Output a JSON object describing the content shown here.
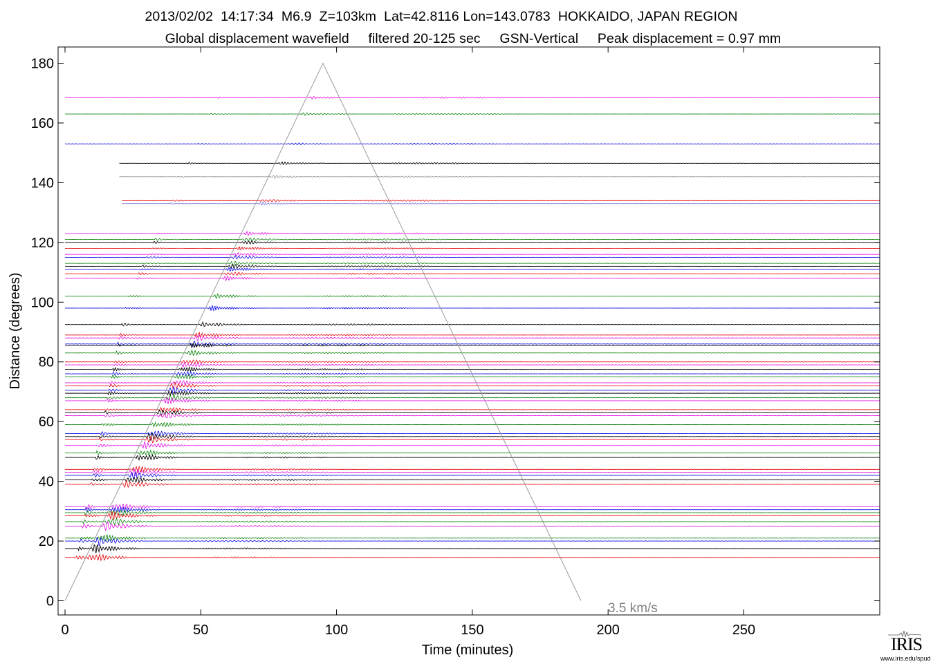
{
  "header": {
    "line1": "2013/02/02  14:17:34  M6.9  Z=103km  Lat=42.8116 Lon=143.0783  HOKKAIDO, JAPAN REGION",
    "line2": "Global displacement wavefield     filtered 20-125 sec     GSN-Vertical     Peak displacement = 0.97 mm"
  },
  "chart_data": {
    "type": "line",
    "title": "2013/02/02  14:17:34  M6.9  Z=103km  Lat=42.8116 Lon=143.0783  HOKKAIDO, JAPAN REGION",
    "subtitle": "Global displacement wavefield     filtered 20-125 sec     GSN-Vertical     Peak displacement = 0.97 mm",
    "xlabel": "Time (minutes)",
    "ylabel": "Distance (degrees)",
    "xlim": [
      0,
      300
    ],
    "ylim": [
      0,
      185
    ],
    "xticks": [
      0,
      50,
      100,
      150,
      200,
      250
    ],
    "yticks": [
      0,
      20,
      40,
      60,
      80,
      100,
      120,
      140,
      160,
      180
    ],
    "grid": false,
    "colors": {
      "black": "#000000",
      "red": "#e8141b",
      "green": "#1a8a1a",
      "blue": "#1515e6",
      "magenta": "#e61ee6",
      "gray": "#9a9a9a",
      "lightblue": "#8a8ae6"
    },
    "reference_line": {
      "label": "3.5 km/s",
      "points": [
        [
          0,
          0
        ],
        [
          95,
          180
        ],
        [
          190,
          0
        ]
      ],
      "color": "#9a9a9a"
    },
    "traces": [
      {
        "distance": 168.5,
        "color": "magenta",
        "start": 0
      },
      {
        "distance": 163,
        "color": "green",
        "start": 0
      },
      {
        "distance": 153,
        "color": "blue",
        "start": 0
      },
      {
        "distance": 146.5,
        "color": "black",
        "start": 20
      },
      {
        "distance": 142,
        "color": "gray",
        "start": 20
      },
      {
        "distance": 134,
        "color": "red",
        "start": 21
      },
      {
        "distance": 133,
        "color": "lightblue",
        "start": 21
      },
      {
        "distance": 123,
        "color": "magenta",
        "start": 0
      },
      {
        "distance": 121,
        "color": "green",
        "start": 0
      },
      {
        "distance": 120,
        "color": "black",
        "start": 0
      },
      {
        "distance": 118,
        "color": "red",
        "start": 0
      },
      {
        "distance": 116,
        "color": "magenta",
        "start": 0
      },
      {
        "distance": 115,
        "color": "blue",
        "start": 0
      },
      {
        "distance": 113,
        "color": "green",
        "start": 0
      },
      {
        "distance": 112,
        "color": "black",
        "start": 0
      },
      {
        "distance": 111,
        "color": "blue",
        "start": 0
      },
      {
        "distance": 109.5,
        "color": "red",
        "start": 0
      },
      {
        "distance": 108,
        "color": "magenta",
        "start": 0
      },
      {
        "distance": 102,
        "color": "green",
        "start": 0
      },
      {
        "distance": 98,
        "color": "blue",
        "start": 0
      },
      {
        "distance": 92.5,
        "color": "black",
        "start": 0
      },
      {
        "distance": 89,
        "color": "red",
        "start": 0
      },
      {
        "distance": 88,
        "color": "magenta",
        "start": 0
      },
      {
        "distance": 86,
        "color": "blue",
        "start": 0
      },
      {
        "distance": 85.5,
        "color": "black",
        "start": 0
      },
      {
        "distance": 83,
        "color": "green",
        "start": 0
      },
      {
        "distance": 80,
        "color": "red",
        "start": 0
      },
      {
        "distance": 79,
        "color": "magenta",
        "start": 0
      },
      {
        "distance": 77.5,
        "color": "black",
        "start": 0
      },
      {
        "distance": 76,
        "color": "blue",
        "start": 0
      },
      {
        "distance": 75,
        "color": "green",
        "start": 0
      },
      {
        "distance": 73,
        "color": "magenta",
        "start": 0
      },
      {
        "distance": 72,
        "color": "red",
        "start": 0
      },
      {
        "distance": 70.5,
        "color": "blue",
        "start": 0
      },
      {
        "distance": 69.5,
        "color": "black",
        "start": 0
      },
      {
        "distance": 68,
        "color": "green",
        "start": 0
      },
      {
        "distance": 67,
        "color": "magenta",
        "start": 0
      },
      {
        "distance": 64,
        "color": "red",
        "start": 0
      },
      {
        "distance": 63,
        "color": "black",
        "start": 0
      },
      {
        "distance": 62,
        "color": "magenta",
        "start": 0
      },
      {
        "distance": 59,
        "color": "green",
        "start": 0
      },
      {
        "distance": 56,
        "color": "blue",
        "start": 0
      },
      {
        "distance": 55,
        "color": "black",
        "start": 0
      },
      {
        "distance": 54,
        "color": "red",
        "start": 0
      },
      {
        "distance": 52,
        "color": "magenta",
        "start": 0
      },
      {
        "distance": 49.5,
        "color": "green",
        "start": 0
      },
      {
        "distance": 48,
        "color": "black",
        "start": 0
      },
      {
        "distance": 44,
        "color": "red",
        "start": 0
      },
      {
        "distance": 43,
        "color": "magenta",
        "start": 0
      },
      {
        "distance": 42,
        "color": "blue",
        "start": 0
      },
      {
        "distance": 40.5,
        "color": "black",
        "start": 0
      },
      {
        "distance": 39,
        "color": "red",
        "start": 0
      },
      {
        "distance": 31.5,
        "color": "magenta",
        "start": 0
      },
      {
        "distance": 30.5,
        "color": "blue",
        "start": 0
      },
      {
        "distance": 29.5,
        "color": "green",
        "start": 0
      },
      {
        "distance": 28.5,
        "color": "red",
        "start": 0
      },
      {
        "distance": 26.5,
        "color": "green",
        "start": 0
      },
      {
        "distance": 25,
        "color": "magenta",
        "start": 0
      },
      {
        "distance": 21,
        "color": "green",
        "start": 0
      },
      {
        "distance": 20,
        "color": "blue",
        "start": 0
      },
      {
        "distance": 17.5,
        "color": "black",
        "start": 0
      },
      {
        "distance": 14.5,
        "color": "red",
        "start": 0
      }
    ]
  },
  "logo": {
    "name": "IRIS",
    "url": "www.iris.edu/spud"
  }
}
